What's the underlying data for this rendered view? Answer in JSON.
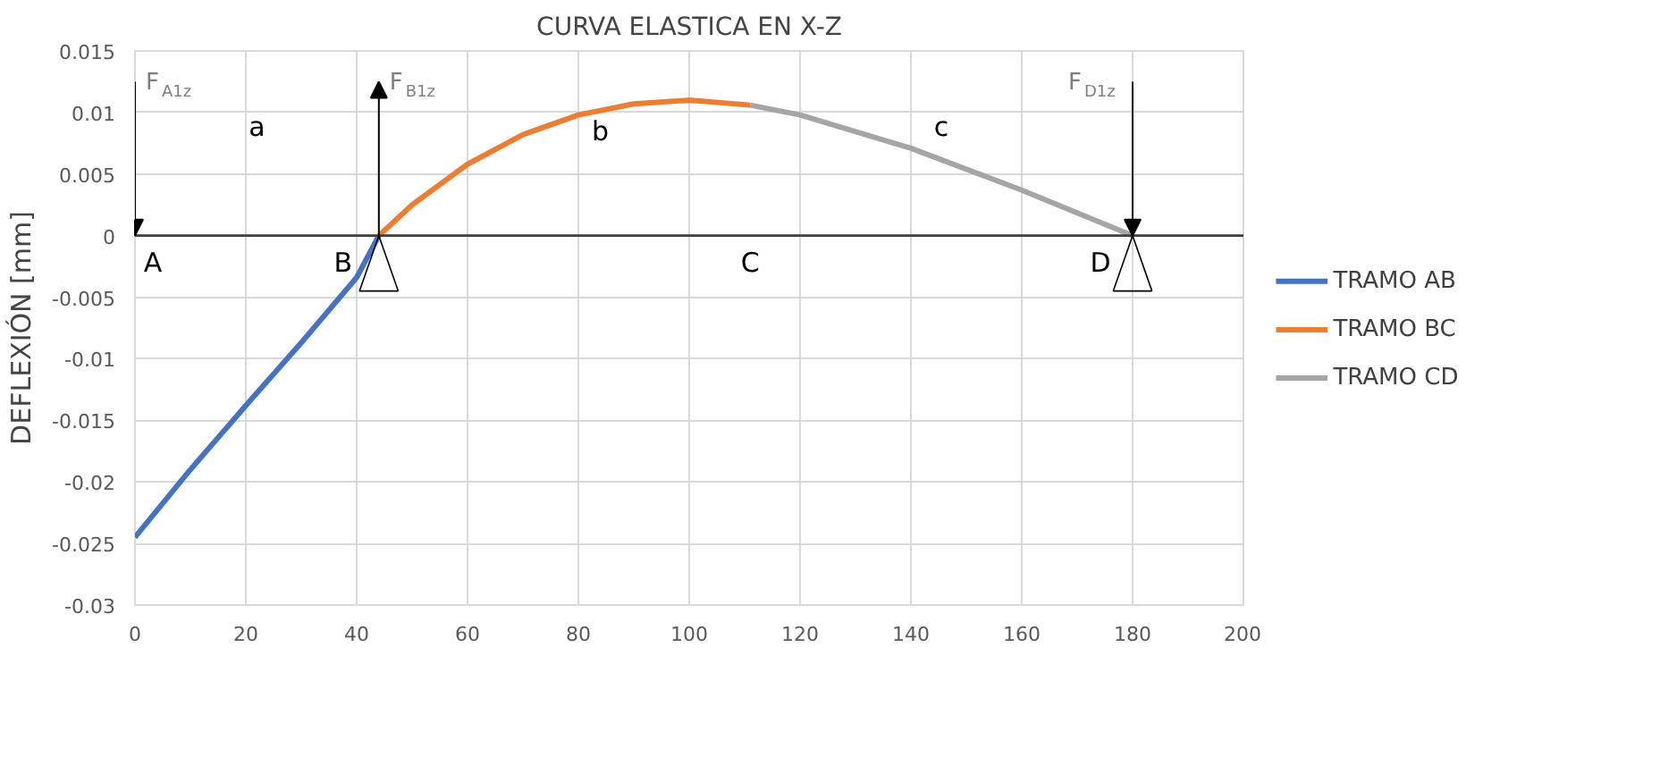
{
  "chart_data": {
    "type": "line",
    "title": "CURVA ELASTICA EN X-Z",
    "ylabel": "DEFLEXIÓN [mm]",
    "xlim": [
      0,
      200
    ],
    "xticks": [
      0,
      20,
      40,
      60,
      80,
      100,
      120,
      140,
      160,
      180,
      200
    ],
    "ylim": [
      -0.03,
      0.015
    ],
    "yticks": [
      -0.03,
      -0.025,
      -0.02,
      -0.015,
      -0.01,
      -0.005,
      0,
      0.005,
      0.01,
      0.015
    ],
    "grid": true,
    "legend": "right",
    "series": [
      {
        "name": "TRAMO AB",
        "color": "#4472c4",
        "x": [
          0,
          10,
          20,
          30,
          40,
          44
        ],
        "values": [
          -0.0245,
          -0.019,
          -0.0138,
          -0.0087,
          -0.0034,
          0
        ]
      },
      {
        "name": "TRAMO BC",
        "color": "#ed7d31",
        "x": [
          44,
          50,
          60,
          70,
          80,
          90,
          100,
          111
        ],
        "values": [
          0,
          0.0025,
          0.0058,
          0.0082,
          0.0098,
          0.0107,
          0.011,
          0.0106
        ]
      },
      {
        "name": "TRAMO CD",
        "color": "#a5a5a5",
        "x": [
          111,
          120,
          140,
          160,
          180
        ],
        "values": [
          0.0106,
          0.0098,
          0.0071,
          0.0037,
          0
        ]
      }
    ],
    "ref_lines": [
      {
        "axis": "y",
        "value": 0,
        "color": "#404040"
      }
    ],
    "annotations": [
      "A",
      "B",
      "C",
      "D",
      "a",
      "b",
      "c",
      {
        "text": "F$_{A1z}$",
        "x": 0,
        "y": 0
      },
      {
        "text": "F$_{B1z}$",
        "x": 44,
        "y": 0
      },
      {
        "text": "F$_{D1z}$",
        "x": 180,
        "y": 0
      }
    ]
  }
}
